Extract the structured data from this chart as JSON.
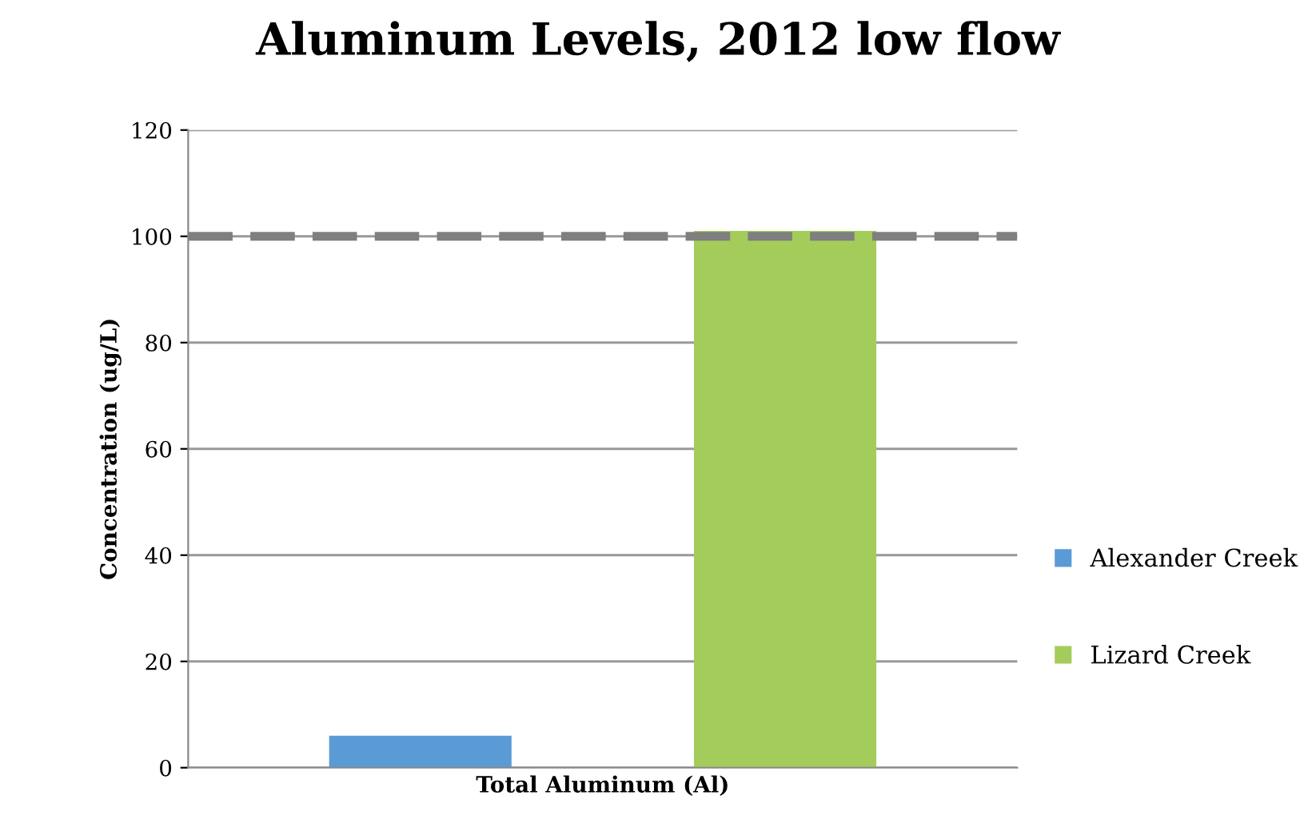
{
  "chart_data": {
    "type": "bar",
    "title": "Aluminum Levels, 2012 low flow",
    "ylabel": "Concentration (ug/L)",
    "categories": [
      "Total Aluminum (Al)"
    ],
    "series": [
      {
        "name": "Alexander Creek",
        "color": "#5b9bd5",
        "values": [
          6
        ]
      },
      {
        "name": "Lizard Creek",
        "color": "#a4cc5a",
        "values": [
          101
        ]
      }
    ],
    "ylim": [
      0,
      120
    ],
    "yticks": [
      0,
      20,
      40,
      60,
      80,
      100,
      120
    ],
    "grid": "y",
    "legend": "right",
    "ref_lines": [
      {
        "axis": "y",
        "value": 100,
        "color": "#7f7f7f",
        "line_style": "dashed"
      }
    ]
  }
}
